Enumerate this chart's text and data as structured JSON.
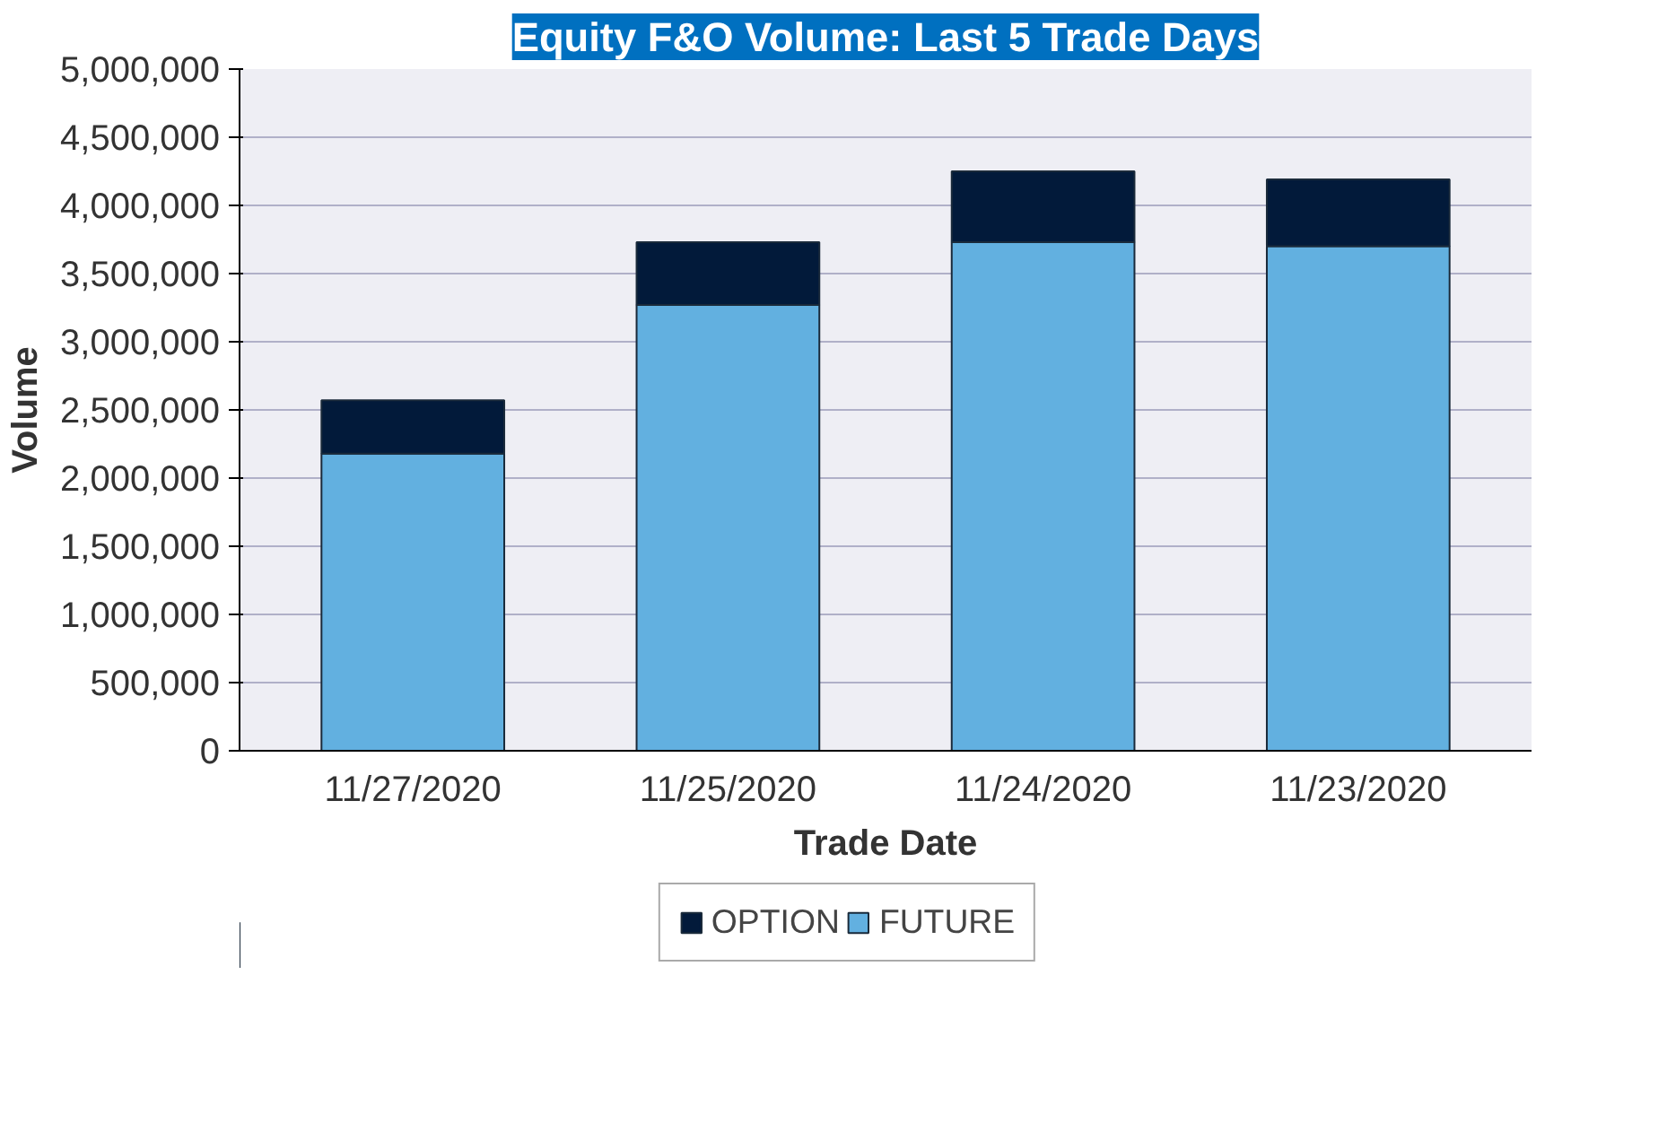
{
  "chart_data": {
    "type": "bar",
    "title": "Equity F&O Volume: Last 5 Trade Days",
    "xlabel": "Trade Date",
    "ylabel": "Volume",
    "categories": [
      "11/27/2020",
      "11/25/2020",
      "11/24/2020",
      "11/23/2020"
    ],
    "series": [
      {
        "name": "FUTURE",
        "color": "#62b0e0",
        "values": [
          2180000,
          3270000,
          3730000,
          3700000
        ]
      },
      {
        "name": "OPTION",
        "color": "#021a3a",
        "values": [
          390000,
          460000,
          520000,
          490000
        ]
      }
    ],
    "stacked": true,
    "ylim": [
      0,
      5000000
    ],
    "yticks": [
      {
        "value": 0,
        "label": "0"
      },
      {
        "value": 500000,
        "label": "500,000"
      },
      {
        "value": 1000000,
        "label": "1,000,000"
      },
      {
        "value": 1500000,
        "label": "1,500,000"
      },
      {
        "value": 2000000,
        "label": "2,000,000"
      },
      {
        "value": 2500000,
        "label": "2,500,000"
      },
      {
        "value": 3000000,
        "label": "3,000,000"
      },
      {
        "value": 3500000,
        "label": "3,500,000"
      },
      {
        "value": 4000000,
        "label": "4,000,000"
      },
      {
        "value": 4500000,
        "label": "4,500,000"
      },
      {
        "value": 5000000,
        "label": "5,000,000"
      }
    ],
    "grid": "y",
    "legend": "bottom"
  }
}
